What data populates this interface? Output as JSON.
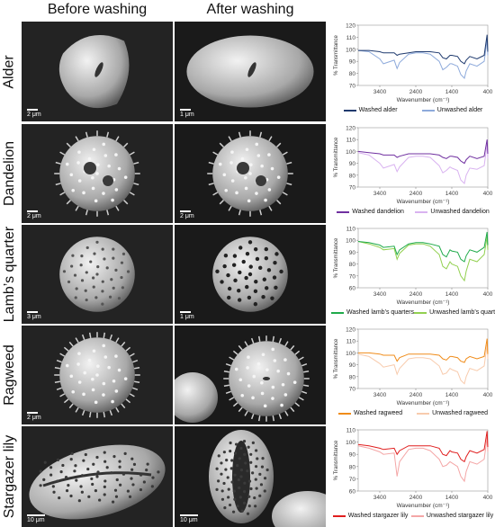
{
  "headers": {
    "before": "Before washing",
    "after": "After washing"
  },
  "axis": {
    "ylabel": "% Transmittance",
    "xlabel": "Wavenumber (cm⁻¹)"
  },
  "rows": [
    {
      "label": "Alder",
      "scale_before": "2 μm",
      "scale_after": "1 μm",
      "chart_data": {
        "type": "line",
        "title": "",
        "xlabel": "Wavenumber (cm⁻¹)",
        "ylabel": "% Transmittance",
        "xlim": [
          4000,
          400
        ],
        "ylim": [
          70,
          120
        ],
        "xticks": [
          3400,
          2400,
          1400,
          400
        ],
        "yticks": [
          70,
          80,
          90,
          100,
          110,
          120
        ],
        "legend": "bottom",
        "series": [
          {
            "name": "Washed alder",
            "color": "#1f3a6e",
            "x": [
              4000,
              3700,
              3400,
              3300,
              3000,
              2920,
              2850,
              2600,
              2400,
              2200,
              2000,
              1750,
              1650,
              1550,
              1450,
              1400,
              1240,
              1150,
              1050,
              1000,
              900,
              700,
              500,
              420,
              400
            ],
            "y": [
              99,
              99,
              98,
              97,
              97,
              95,
              96,
              97,
              98,
              98,
              98,
              97,
              93,
              92,
              95,
              95,
              94,
              90,
              88,
              91,
              94,
              92,
              95,
              112,
              98
            ]
          },
          {
            "name": "Unwashed alder",
            "color": "#8eaadb",
            "x": [
              4000,
              3700,
              3400,
              3300,
              3000,
              2920,
              2850,
              2600,
              2400,
              2200,
              2000,
              1750,
              1650,
              1550,
              1450,
              1400,
              1240,
              1150,
              1050,
              1000,
              900,
              700,
              500,
              420,
              400
            ],
            "y": [
              99,
              98,
              92,
              88,
              91,
              84,
              89,
              96,
              97,
              97,
              96,
              90,
              83,
              85,
              88,
              88,
              86,
              79,
              76,
              82,
              88,
              86,
              90,
              108,
              95
            ]
          }
        ]
      }
    },
    {
      "label": "Dandelion",
      "scale_before": "2 μm",
      "scale_after": "2 μm",
      "chart_data": {
        "type": "line",
        "title": "",
        "xlabel": "Wavenumber (cm⁻¹)",
        "ylabel": "% Transmittance",
        "xlim": [
          4000,
          400
        ],
        "ylim": [
          70,
          120
        ],
        "xticks": [
          3400,
          2400,
          1400,
          400
        ],
        "yticks": [
          70,
          80,
          90,
          100,
          110,
          120
        ],
        "legend": "bottom",
        "series": [
          {
            "name": "Washed dandelion",
            "color": "#7030a0",
            "x": [
              4000,
              3700,
              3400,
              3300,
              3000,
              2920,
              2850,
              2600,
              2400,
              2200,
              2000,
              1750,
              1650,
              1550,
              1450,
              1400,
              1240,
              1150,
              1050,
              1000,
              900,
              700,
              500,
              420,
              400
            ],
            "y": [
              100,
              99,
              98,
              97,
              97,
              95,
              96,
              98,
              98,
              98,
              98,
              97,
              95,
              94,
              96,
              96,
              95,
              92,
              90,
              93,
              96,
              94,
              96,
              110,
              98
            ]
          },
          {
            "name": "Unwashed dandelion",
            "color": "#d9b3f0",
            "x": [
              4000,
              3700,
              3400,
              3300,
              3000,
              2920,
              2850,
              2600,
              2400,
              2200,
              2000,
              1750,
              1650,
              1550,
              1450,
              1400,
              1240,
              1150,
              1050,
              1000,
              900,
              700,
              500,
              420,
              400
            ],
            "y": [
              99,
              97,
              90,
              86,
              89,
              83,
              87,
              95,
              96,
              96,
              95,
              88,
              82,
              84,
              87,
              86,
              84,
              76,
              73,
              80,
              86,
              85,
              88,
              106,
              94
            ]
          }
        ]
      }
    },
    {
      "label": "Lamb’s quarter",
      "scale_before": "3 μm",
      "scale_after": "1 μm",
      "chart_data": {
        "type": "line",
        "title": "",
        "xlabel": "Wavenumber (cm⁻¹)",
        "ylabel": "% Transmittance",
        "xlim": [
          4000,
          400
        ],
        "ylim": [
          60,
          110
        ],
        "xticks": [
          3400,
          2400,
          1400,
          400
        ],
        "yticks": [
          60,
          70,
          80,
          90,
          100,
          110
        ],
        "legend": "bottom",
        "series": [
          {
            "name": "Washed lamb’s quarters",
            "color": "#1faa4a",
            "x": [
              4000,
              3700,
              3400,
              3300,
              3000,
              2920,
              2850,
              2600,
              2400,
              2200,
              2000,
              1750,
              1650,
              1550,
              1450,
              1400,
              1240,
              1150,
              1050,
              1000,
              900,
              700,
              500,
              420,
              400
            ],
            "y": [
              99,
              98,
              96,
              94,
              95,
              88,
              92,
              97,
              98,
              98,
              97,
              95,
              88,
              86,
              92,
              91,
              90,
              84,
              82,
              87,
              92,
              90,
              94,
              107,
              96
            ]
          },
          {
            "name": "Unwashed lamb’s quarters",
            "color": "#92d050",
            "x": [
              4000,
              3700,
              3400,
              3300,
              3000,
              2920,
              2850,
              2600,
              2400,
              2200,
              2000,
              1750,
              1650,
              1550,
              1450,
              1400,
              1240,
              1150,
              1050,
              1000,
              900,
              700,
              500,
              420,
              400
            ],
            "y": [
              99,
              97,
              94,
              92,
              93,
              84,
              89,
              96,
              97,
              97,
              95,
              88,
              78,
              76,
              82,
              80,
              78,
              70,
              66,
              74,
              84,
              82,
              88,
              103,
              92
            ]
          }
        ]
      }
    },
    {
      "label": "Ragweed",
      "scale_before": "2 μm",
      "scale_after": "",
      "chart_data": {
        "type": "line",
        "title": "",
        "xlabel": "Wavenumber (cm⁻¹)",
        "ylabel": "% Transmittance",
        "xlim": [
          4000,
          400
        ],
        "ylim": [
          70,
          120
        ],
        "xticks": [
          3400,
          2400,
          1400,
          400
        ],
        "yticks": [
          70,
          80,
          90,
          100,
          110,
          120
        ],
        "legend": "bottom",
        "series": [
          {
            "name": "Washed ragweed",
            "color": "#f08c1a",
            "x": [
              4000,
              3700,
              3400,
              3300,
              3000,
              2920,
              2850,
              2600,
              2400,
              2200,
              2000,
              1750,
              1650,
              1550,
              1450,
              1400,
              1240,
              1150,
              1050,
              1000,
              900,
              700,
              500,
              420,
              400
            ],
            "y": [
              100,
              100,
              99,
              98,
              98,
              93,
              96,
              99,
              99,
              99,
              99,
              98,
              95,
              94,
              97,
              97,
              96,
              93,
              92,
              95,
              97,
              95,
              97,
              112,
              99
            ]
          },
          {
            "name": "Unwashed ragweed",
            "color": "#f8cbad",
            "x": [
              4000,
              3700,
              3400,
              3300,
              3000,
              2920,
              2850,
              2600,
              2400,
              2200,
              2000,
              1750,
              1650,
              1550,
              1450,
              1400,
              1240,
              1150,
              1050,
              1000,
              900,
              700,
              500,
              420,
              400
            ],
            "y": [
              99,
              97,
              91,
              88,
              90,
              82,
              87,
              95,
              96,
              96,
              95,
              89,
              82,
              83,
              87,
              86,
              84,
              77,
              74,
              80,
              87,
              85,
              89,
              107,
              95
            ]
          }
        ]
      }
    },
    {
      "label": "Stargazer lily",
      "scale_before": "10 μm",
      "scale_after": "10 μm",
      "chart_data": {
        "type": "line",
        "title": "",
        "xlabel": "Wavenumber (cm⁻¹)",
        "ylabel": "% Transmittance",
        "xlim": [
          4000,
          400
        ],
        "ylim": [
          60,
          110
        ],
        "xticks": [
          3400,
          2400,
          1400,
          400
        ],
        "yticks": [
          60,
          70,
          80,
          90,
          100,
          110
        ],
        "legend": "bottom",
        "series": [
          {
            "name": "Washed stargazer lily",
            "color": "#e01e1e",
            "x": [
              4000,
              3700,
              3400,
              3300,
              3000,
              2920,
              2850,
              2600,
              2400,
              2200,
              2000,
              1750,
              1650,
              1550,
              1450,
              1400,
              1240,
              1150,
              1050,
              1000,
              900,
              700,
              500,
              420,
              400
            ],
            "y": [
              98,
              97,
              95,
              94,
              95,
              90,
              93,
              97,
              97,
              97,
              97,
              95,
              90,
              89,
              93,
              92,
              91,
              86,
              84,
              88,
              93,
              91,
              94,
              109,
              96
            ]
          },
          {
            "name": "Unwashed stargazer lily",
            "color": "#f4a6a6",
            "x": [
              4000,
              3700,
              3400,
              3300,
              3000,
              2920,
              2850,
              2600,
              2400,
              2200,
              2000,
              1750,
              1650,
              1550,
              1450,
              1400,
              1240,
              1150,
              1050,
              1000,
              900,
              700,
              500,
              420,
              400
            ],
            "y": [
              97,
              95,
              92,
              90,
              91,
              72,
              84,
              94,
              95,
              95,
              93,
              86,
              80,
              81,
              84,
              83,
              80,
              72,
              68,
              76,
              84,
              82,
              86,
              104,
              92
            ]
          }
        ]
      }
    }
  ]
}
